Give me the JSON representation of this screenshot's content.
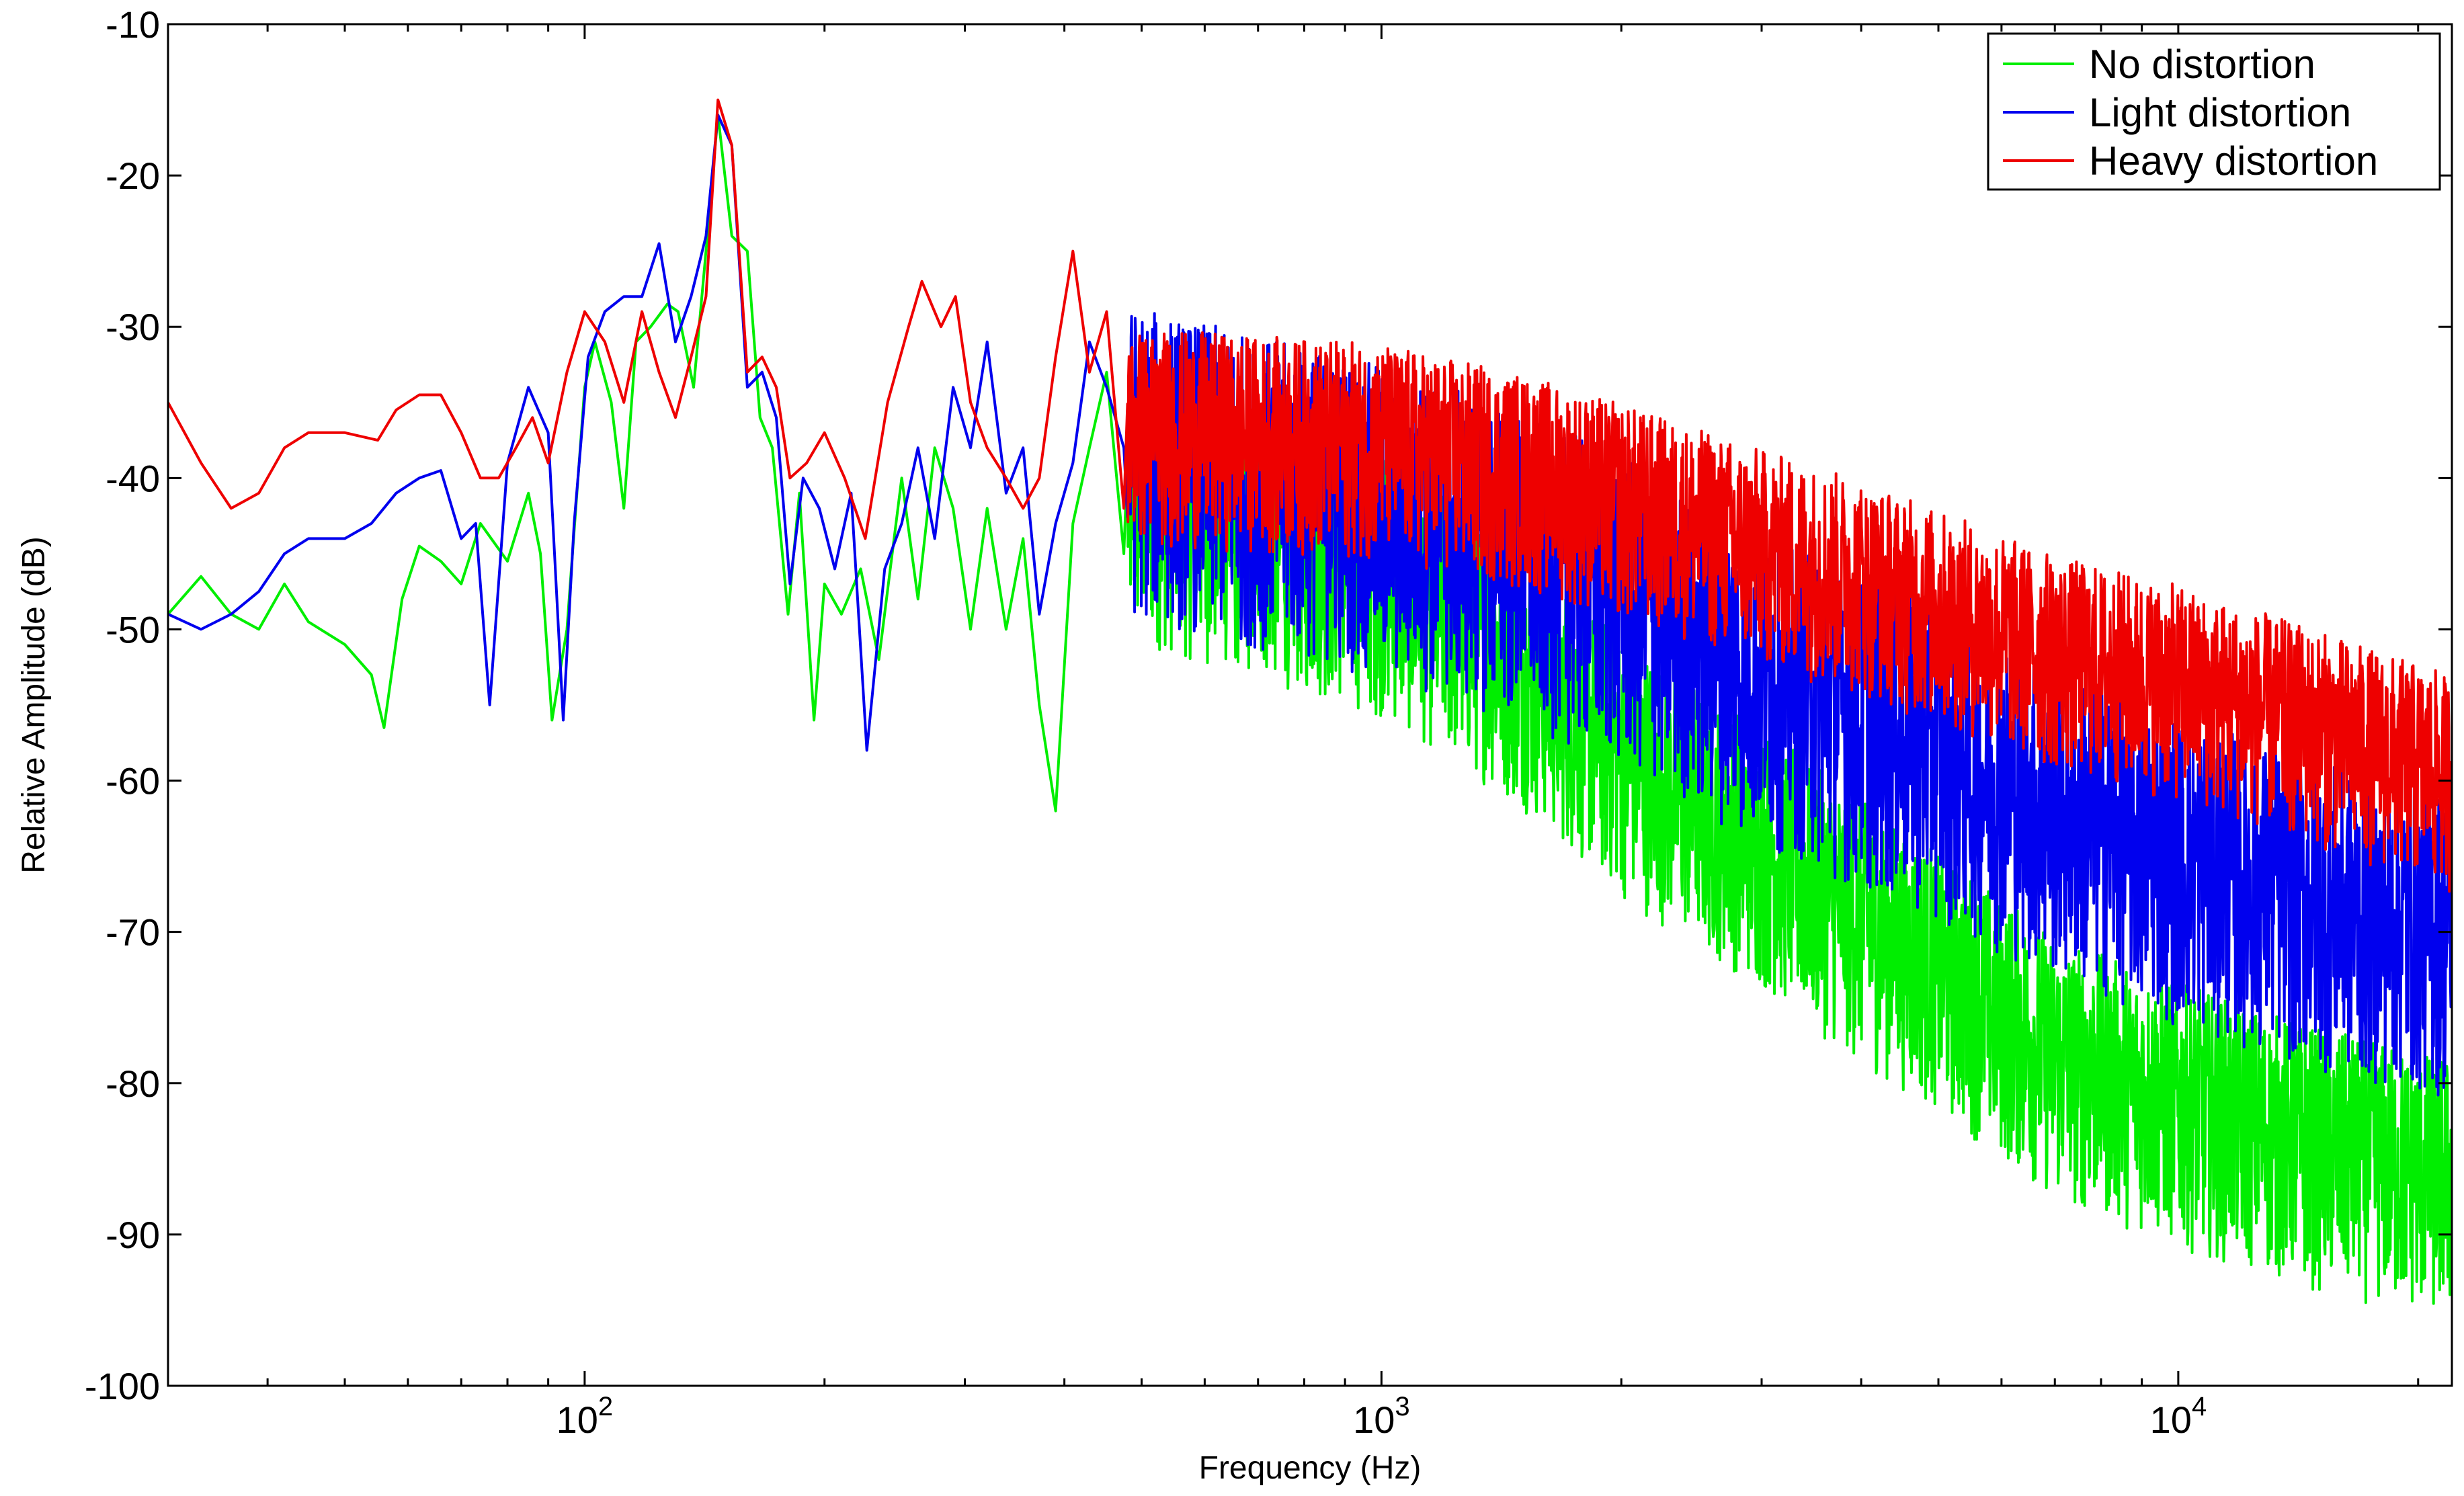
{
  "chart_data": {
    "type": "line",
    "xlabel": "Frequency (Hz)",
    "ylabel": "Relative Amplitude (dB)",
    "xscale": "log",
    "xlim": [
      30,
      22050
    ],
    "ylim": [
      -100,
      -10
    ],
    "grid": false,
    "legend_position": "top-right",
    "x_ticks": [
      {
        "value": 100,
        "base": "10",
        "exp": "2"
      },
      {
        "value": 1000,
        "base": "10",
        "exp": "3"
      },
      {
        "value": 10000,
        "base": "10",
        "exp": "4"
      }
    ],
    "y_ticks": [
      {
        "value": -10,
        "label": "-10"
      },
      {
        "value": -20,
        "label": "-20"
      },
      {
        "value": -30,
        "label": "-30"
      },
      {
        "value": -40,
        "label": "-40"
      },
      {
        "value": -50,
        "label": "-50"
      },
      {
        "value": -60,
        "label": "-60"
      },
      {
        "value": -70,
        "label": "-70"
      },
      {
        "value": -80,
        "label": "-80"
      },
      {
        "value": -90,
        "label": "-90"
      },
      {
        "value": -100,
        "label": "-100"
      }
    ],
    "series": [
      {
        "name": "No distortion",
        "color": "#00ee00",
        "points": [
          [
            30,
            -49
          ],
          [
            33,
            -46.5
          ],
          [
            36,
            -49
          ],
          [
            39,
            -50
          ],
          [
            42,
            -47
          ],
          [
            45,
            -49.5
          ],
          [
            50,
            -51
          ],
          [
            54,
            -53
          ],
          [
            56,
            -56.5
          ],
          [
            59,
            -48
          ],
          [
            62,
            -44.5
          ],
          [
            66,
            -45.5
          ],
          [
            70,
            -47
          ],
          [
            74,
            -43
          ],
          [
            80,
            -45.5
          ],
          [
            85,
            -41
          ],
          [
            88,
            -45
          ],
          [
            91,
            -56
          ],
          [
            95,
            -50
          ],
          [
            100,
            -34
          ],
          [
            103,
            -31
          ],
          [
            108,
            -35
          ],
          [
            112,
            -42
          ],
          [
            116,
            -31
          ],
          [
            121,
            -30
          ],
          [
            127,
            -28.5
          ],
          [
            131,
            -29
          ],
          [
            137,
            -34
          ],
          [
            142,
            -25
          ],
          [
            147,
            -16
          ],
          [
            153,
            -24
          ],
          [
            160,
            -25
          ],
          [
            166,
            -36
          ],
          [
            172,
            -38
          ],
          [
            180,
            -49
          ],
          [
            186,
            -41
          ],
          [
            194,
            -56
          ],
          [
            200,
            -47
          ],
          [
            210,
            -49
          ],
          [
            222,
            -46
          ],
          [
            234,
            -52
          ],
          [
            250,
            -40
          ],
          [
            262,
            -48
          ],
          [
            275,
            -38
          ],
          [
            290,
            -42
          ],
          [
            305,
            -50
          ],
          [
            320,
            -42
          ],
          [
            338,
            -50
          ],
          [
            355,
            -44
          ],
          [
            372,
            -55
          ],
          [
            390,
            -62
          ],
          [
            410,
            -43
          ],
          [
            430,
            -38
          ],
          [
            452,
            -33
          ],
          [
            475,
            -45
          ]
        ],
        "trend": [
          [
            480,
            -43
          ],
          [
            1000,
            -48
          ],
          [
            1500,
            -54
          ],
          [
            2000,
            -60
          ],
          [
            3000,
            -66
          ],
          [
            4000,
            -71
          ],
          [
            5000,
            -74
          ],
          [
            7000,
            -80
          ],
          [
            10000,
            -83
          ],
          [
            15000,
            -86
          ],
          [
            22050,
            -88
          ]
        ],
        "spread": 11
      },
      {
        "name": "Light distortion",
        "color": "#0000ee",
        "points": [
          [
            30,
            -49
          ],
          [
            33,
            -50
          ],
          [
            36,
            -49
          ],
          [
            39,
            -47.5
          ],
          [
            42,
            -45
          ],
          [
            45,
            -44
          ],
          [
            50,
            -44
          ],
          [
            54,
            -43
          ],
          [
            58,
            -41
          ],
          [
            62,
            -40
          ],
          [
            66,
            -39.5
          ],
          [
            70,
            -44
          ],
          [
            73,
            -43
          ],
          [
            76,
            -55
          ],
          [
            80,
            -39
          ],
          [
            85,
            -34
          ],
          [
            90,
            -37
          ],
          [
            94,
            -56
          ],
          [
            97,
            -43
          ],
          [
            101,
            -32
          ],
          [
            106,
            -29
          ],
          [
            112,
            -28
          ],
          [
            118,
            -28
          ],
          [
            124,
            -24.5
          ],
          [
            130,
            -31
          ],
          [
            136,
            -28
          ],
          [
            142,
            -24
          ],
          [
            147,
            -16
          ],
          [
            153,
            -18
          ],
          [
            160,
            -34
          ],
          [
            167,
            -33
          ],
          [
            174,
            -36
          ],
          [
            181,
            -47
          ],
          [
            188,
            -40
          ],
          [
            197,
            -42
          ],
          [
            206,
            -46
          ],
          [
            216,
            -41
          ],
          [
            226,
            -58
          ],
          [
            238,
            -46
          ],
          [
            250,
            -43
          ],
          [
            262,
            -38
          ],
          [
            275,
            -44
          ],
          [
            290,
            -34
          ],
          [
            305,
            -38
          ],
          [
            320,
            -31
          ],
          [
            338,
            -41
          ],
          [
            355,
            -38
          ],
          [
            372,
            -49
          ],
          [
            390,
            -43
          ],
          [
            410,
            -39
          ],
          [
            430,
            -31
          ],
          [
            452,
            -34
          ],
          [
            475,
            -38
          ]
        ],
        "trend": [
          [
            480,
            -40
          ],
          [
            1000,
            -44
          ],
          [
            1500,
            -47
          ],
          [
            2000,
            -50
          ],
          [
            3000,
            -55
          ],
          [
            4000,
            -58
          ],
          [
            5000,
            -60
          ],
          [
            7000,
            -64
          ],
          [
            10000,
            -67
          ],
          [
            15000,
            -70
          ],
          [
            22050,
            -72
          ]
        ],
        "spread": 13
      },
      {
        "name": "Heavy distortion",
        "color": "#ee0000",
        "points": [
          [
            30,
            -35
          ],
          [
            33,
            -39
          ],
          [
            36,
            -42
          ],
          [
            39,
            -41
          ],
          [
            42,
            -38
          ],
          [
            45,
            -37
          ],
          [
            50,
            -37
          ],
          [
            55,
            -37.5
          ],
          [
            58,
            -35.5
          ],
          [
            62,
            -34.5
          ],
          [
            66,
            -34.5
          ],
          [
            70,
            -37
          ],
          [
            74,
            -40
          ],
          [
            78,
            -40
          ],
          [
            82,
            -38
          ],
          [
            86,
            -36
          ],
          [
            90,
            -39
          ],
          [
            95,
            -33
          ],
          [
            100,
            -29
          ],
          [
            106,
            -31
          ],
          [
            112,
            -35
          ],
          [
            118,
            -29
          ],
          [
            124,
            -33
          ],
          [
            130,
            -36
          ],
          [
            136,
            -32
          ],
          [
            142,
            -28
          ],
          [
            147,
            -15
          ],
          [
            153,
            -18
          ],
          [
            160,
            -33
          ],
          [
            167,
            -32
          ],
          [
            174,
            -34
          ],
          [
            181,
            -40
          ],
          [
            190,
            -39
          ],
          [
            200,
            -37
          ],
          [
            212,
            -40
          ],
          [
            225,
            -44
          ],
          [
            240,
            -35
          ],
          [
            255,
            -30
          ],
          [
            265,
            -27
          ],
          [
            280,
            -30
          ],
          [
            292,
            -28
          ],
          [
            305,
            -35
          ],
          [
            320,
            -38
          ],
          [
            338,
            -40
          ],
          [
            355,
            -42
          ],
          [
            372,
            -40
          ],
          [
            390,
            -32
          ],
          [
            410,
            -25
          ],
          [
            430,
            -33
          ],
          [
            452,
            -29
          ],
          [
            475,
            -42
          ]
        ],
        "trend": [
          [
            480,
            -38
          ],
          [
            1000,
            -39
          ],
          [
            1500,
            -41
          ],
          [
            2000,
            -43
          ],
          [
            3000,
            -46
          ],
          [
            4000,
            -48
          ],
          [
            5000,
            -50
          ],
          [
            7000,
            -53
          ],
          [
            10000,
            -55
          ],
          [
            15000,
            -58
          ],
          [
            22050,
            -61
          ]
        ],
        "spread": 9
      }
    ]
  }
}
